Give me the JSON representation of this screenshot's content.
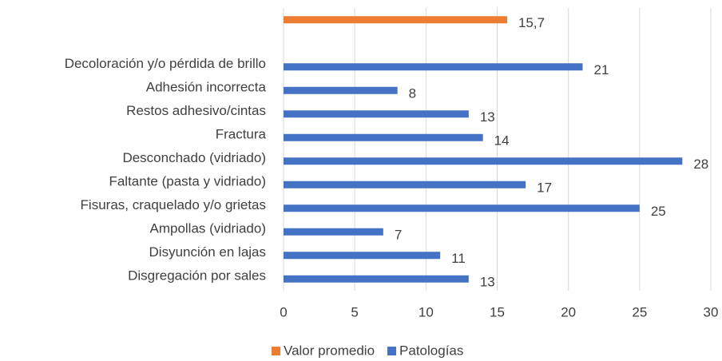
{
  "chart_data": {
    "type": "bar",
    "orientation": "horizontal",
    "categories": [
      null,
      null,
      "Decoloración y/o pérdida de brillo",
      "Adhesión incorrecta",
      "Restos adhesivo/cintas",
      "Fractura",
      "Desconchado (vidriado)",
      "Faltante (pasta y vidriado)",
      "Fisuras, craquelado y/o grietas",
      "Ampollas (vidriado)",
      "Disyunción en lajas",
      "Disgregación por sales"
    ],
    "series": [
      {
        "name": "Valor promedio",
        "color": "#ed7d31",
        "values": [
          15.7,
          null,
          null,
          null,
          null,
          null,
          null,
          null,
          null,
          null,
          null,
          null
        ],
        "value_labels": [
          "15,7",
          null,
          null,
          null,
          null,
          null,
          null,
          null,
          null,
          null,
          null,
          null
        ]
      },
      {
        "name": "Patologías",
        "color": "#4472c4",
        "values": [
          null,
          null,
          21,
          8,
          13,
          14,
          28,
          17,
          25,
          7,
          11,
          13
        ]
      }
    ],
    "xlim": [
      0,
      30
    ],
    "xticks": [
      0,
      5,
      10,
      15,
      20,
      25,
      30
    ],
    "grid": true,
    "legend": "bottom"
  }
}
